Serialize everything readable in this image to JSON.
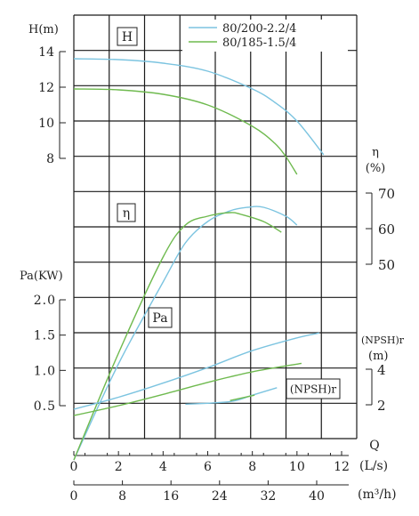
{
  "chart_data": {
    "type": "line",
    "legend": {
      "placement": "top-right",
      "items": [
        {
          "name": "80/200-2.2/4",
          "color": "#7cc4e0"
        },
        {
          "name": "80/185-1.5/4",
          "color": "#6fba4f"
        }
      ]
    },
    "x_axes": [
      {
        "label": "(L/s)",
        "range": [
          0,
          12
        ],
        "ticks": [
          "0",
          "2",
          "4",
          "6",
          "8",
          "10",
          "12"
        ]
      },
      {
        "label": "(m³/h)",
        "range": [
          0,
          43.2
        ],
        "ticks": [
          "0",
          "8",
          "16",
          "24",
          "32",
          "40"
        ]
      }
    ],
    "q_label": "Q",
    "panel_labels": {
      "head": "H",
      "efficiency": "η",
      "power": "Pa",
      "npsh": "(NPSH)r"
    },
    "axes": {
      "head": {
        "label": "H(m)",
        "range": [
          8,
          14
        ],
        "ticks": [
          "8",
          "10",
          "12",
          "14"
        ]
      },
      "efficiency": {
        "label": "η",
        "unit": "(%)",
        "range": [
          50,
          70
        ],
        "ticks": [
          "50",
          "60",
          "70"
        ]
      },
      "power": {
        "label": "Pa(KW)",
        "range": [
          0.5,
          2.0
        ],
        "ticks": [
          "0.5",
          "1.0",
          "1.5",
          "2.0"
        ]
      },
      "npsh": {
        "label": "(NPSH)r",
        "unit": "(m)",
        "range": [
          2,
          4
        ],
        "ticks": [
          "2",
          "4"
        ]
      }
    },
    "series": [
      {
        "name": "80/200-2.2/4",
        "axis": "head",
        "x": [
          0,
          2,
          4,
          6,
          8,
          9,
          10,
          11.2
        ],
        "y": [
          13.6,
          13.55,
          13.35,
          12.9,
          11.9,
          11.15,
          10.1,
          8.2
        ]
      },
      {
        "name": "80/185-1.5/4",
        "axis": "head",
        "x": [
          0,
          2,
          4,
          6,
          8,
          9,
          9.5,
          10.0
        ],
        "y": [
          11.9,
          11.85,
          11.6,
          11.0,
          9.8,
          8.85,
          8.1,
          7.1
        ]
      },
      {
        "name": "80/200-2.2/4",
        "axis": "efficiency",
        "x": [
          0,
          2,
          4,
          5,
          6,
          7,
          7.8,
          8.5,
          9.5,
          10
        ],
        "y": [
          -5,
          22,
          45,
          56,
          62,
          65,
          66,
          66,
          63.5,
          61
        ]
      },
      {
        "name": "80/185-1.5/4",
        "axis": "efficiency",
        "x": [
          0,
          2,
          4,
          5,
          6,
          7,
          7.5,
          8.5,
          9.3
        ],
        "y": [
          -5,
          25,
          52,
          61,
          63.5,
          64.5,
          64,
          62,
          59
        ]
      },
      {
        "name": "80/200-2.2/4",
        "axis": "power",
        "x": [
          0,
          2,
          4,
          6,
          8,
          10,
          11
        ],
        "y": [
          0.45,
          0.62,
          0.82,
          1.04,
          1.28,
          1.46,
          1.53
        ]
      },
      {
        "name": "80/185-1.5/4",
        "axis": "power",
        "x": [
          0,
          2,
          4,
          6,
          8,
          10.2
        ],
        "y": [
          0.36,
          0.5,
          0.66,
          0.83,
          0.98,
          1.1
        ]
      },
      {
        "name": "80/200-2.2/4",
        "axis": "npsh",
        "x": [
          5,
          7,
          8,
          9.1
        ],
        "y": [
          0.05,
          0.3,
          0.9,
          1.6
        ]
      },
      {
        "name": "80/185-1.5/4",
        "axis": "npsh",
        "x": [
          7,
          8.1
        ],
        "y": [
          0.4,
          0.9
        ]
      }
    ]
  }
}
